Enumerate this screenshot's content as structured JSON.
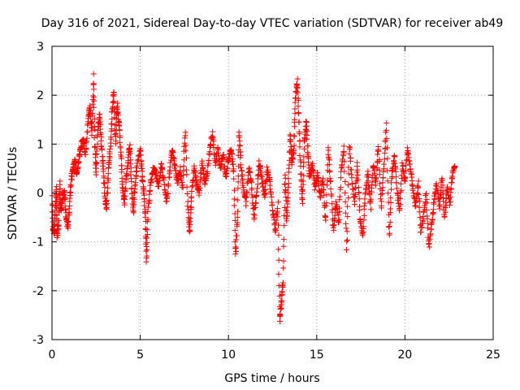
{
  "chart_data": {
    "type": "scatter",
    "title": "Day 316 of 2021, Sidereal Day-to-day VTEC variation (SDTVAR) for receiver ab49",
    "xlabel": "GPS time / hours",
    "ylabel": "SDTVAR / TECUs",
    "xlim": [
      0,
      25
    ],
    "ylim": [
      -3,
      3
    ],
    "xticks": [
      0,
      5,
      10,
      15,
      20,
      25
    ],
    "yticks": [
      -3,
      -2,
      -1,
      0,
      1,
      2,
      3
    ],
    "grid": true,
    "marker": "+",
    "color": "#ff0000",
    "series": [
      {
        "name": "SDTVAR",
        "trace": [
          [
            0.0,
            -0.05
          ],
          [
            0.05,
            -0.7
          ],
          [
            0.12,
            -0.8
          ],
          [
            0.2,
            -0.3
          ],
          [
            0.25,
            0.1
          ],
          [
            0.3,
            -0.9
          ],
          [
            0.38,
            -0.6
          ],
          [
            0.45,
            0.2
          ],
          [
            0.5,
            -0.4
          ],
          [
            0.6,
            -0.1
          ],
          [
            0.7,
            0.05
          ],
          [
            0.8,
            -0.5
          ],
          [
            0.9,
            -0.7
          ],
          [
            1.0,
            -0.2
          ],
          [
            1.1,
            0.3
          ],
          [
            1.2,
            0.5
          ],
          [
            1.3,
            0.7
          ],
          [
            1.4,
            0.4
          ],
          [
            1.5,
            0.6
          ],
          [
            1.6,
            0.9
          ],
          [
            1.75,
            1.1
          ],
          [
            1.9,
            0.8
          ],
          [
            2.05,
            1.5
          ],
          [
            2.15,
            1.8
          ],
          [
            2.25,
            1.2
          ],
          [
            2.35,
            2.4
          ],
          [
            2.42,
            1.0
          ],
          [
            2.5,
            0.4
          ],
          [
            2.6,
            1.3
          ],
          [
            2.7,
            1.6
          ],
          [
            2.8,
            1.0
          ],
          [
            2.9,
            0.5
          ],
          [
            3.0,
            -0.1
          ],
          [
            3.1,
            -0.3
          ],
          [
            3.2,
            0.5
          ],
          [
            3.3,
            0.9
          ],
          [
            3.4,
            1.6
          ],
          [
            3.5,
            2.1
          ],
          [
            3.6,
            1.0
          ],
          [
            3.7,
            1.8
          ],
          [
            3.8,
            1.4
          ],
          [
            3.9,
            0.8
          ],
          [
            4.0,
            0.1
          ],
          [
            4.1,
            -0.2
          ],
          [
            4.2,
            0.3
          ],
          [
            4.3,
            0.6
          ],
          [
            4.4,
            1.0
          ],
          [
            4.5,
            0.2
          ],
          [
            4.6,
            -0.4
          ],
          [
            4.7,
            0.1
          ],
          [
            4.8,
            0.5
          ],
          [
            5.0,
            0.9
          ],
          [
            5.1,
            0.4
          ],
          [
            5.2,
            0.0
          ],
          [
            5.3,
            -0.5
          ],
          [
            5.35,
            -1.4
          ],
          [
            5.45,
            -0.3
          ],
          [
            5.6,
            0.2
          ],
          [
            5.75,
            0.5
          ],
          [
            5.9,
            0.4
          ],
          [
            6.05,
            0.1
          ],
          [
            6.2,
            0.6
          ],
          [
            6.35,
            0.2
          ],
          [
            6.5,
            -0.2
          ],
          [
            6.65,
            0.4
          ],
          [
            6.8,
            0.9
          ],
          [
            6.95,
            0.6
          ],
          [
            7.1,
            0.2
          ],
          [
            7.25,
            0.5
          ],
          [
            7.4,
            0.1
          ],
          [
            7.55,
            1.3
          ],
          [
            7.7,
            -0.3
          ],
          [
            7.8,
            -0.8
          ],
          [
            7.9,
            -0.1
          ],
          [
            8.05,
            0.5
          ],
          [
            8.2,
            0.2
          ],
          [
            8.35,
            0.0
          ],
          [
            8.5,
            0.6
          ],
          [
            8.65,
            0.2
          ],
          [
            8.8,
            0.4
          ],
          [
            8.95,
            0.9
          ],
          [
            9.1,
            1.2
          ],
          [
            9.25,
            0.6
          ],
          [
            9.4,
            0.9
          ],
          [
            9.55,
            0.5
          ],
          [
            9.7,
            0.8
          ],
          [
            9.85,
            0.3
          ],
          [
            10.0,
            0.7
          ],
          [
            10.15,
            0.9
          ],
          [
            10.3,
            0.4
          ],
          [
            10.4,
            -1.3
          ],
          [
            10.5,
            -0.5
          ],
          [
            10.6,
            1.3
          ],
          [
            10.7,
            0.6
          ],
          [
            10.85,
            0.1
          ],
          [
            11.0,
            -0.2
          ],
          [
            11.15,
            0.5
          ],
          [
            11.3,
            0.2
          ],
          [
            11.45,
            -0.5
          ],
          [
            11.6,
            0.0
          ],
          [
            11.75,
            0.6
          ],
          [
            11.9,
            0.3
          ],
          [
            12.05,
            -0.1
          ],
          [
            12.2,
            0.5
          ],
          [
            12.35,
            0.2
          ],
          [
            12.5,
            -0.3
          ],
          [
            12.65,
            -0.8
          ],
          [
            12.8,
            -0.2
          ],
          [
            12.9,
            -2.6
          ],
          [
            13.0,
            -2.2
          ],
          [
            13.1,
            -1.8
          ],
          [
            13.2,
            0.4
          ],
          [
            13.3,
            -0.6
          ],
          [
            13.4,
            0.2
          ],
          [
            13.5,
            1.2
          ],
          [
            13.6,
            0.6
          ],
          [
            13.7,
            0.9
          ],
          [
            13.8,
            1.9
          ],
          [
            13.9,
            2.3
          ],
          [
            14.0,
            1.4
          ],
          [
            14.1,
            0.4
          ],
          [
            14.2,
            -0.2
          ],
          [
            14.3,
            1.0
          ],
          [
            14.4,
            1.5
          ],
          [
            14.5,
            0.8
          ],
          [
            14.6,
            0.3
          ],
          [
            14.75,
            0.6
          ],
          [
            14.9,
            0.1
          ],
          [
            15.05,
            0.4
          ],
          [
            15.2,
            -0.1
          ],
          [
            15.35,
            0.3
          ],
          [
            15.5,
            -0.6
          ],
          [
            15.65,
            0.9
          ],
          [
            15.8,
            0.2
          ],
          [
            15.95,
            -0.8
          ],
          [
            16.1,
            -0.2
          ],
          [
            16.25,
            -0.6
          ],
          [
            16.4,
            0.5
          ],
          [
            16.55,
            0.9
          ],
          [
            16.7,
            -1.2
          ],
          [
            16.85,
            1.0
          ],
          [
            17.0,
            0.2
          ],
          [
            17.15,
            -0.2
          ],
          [
            17.3,
            0.6
          ],
          [
            17.45,
            -0.5
          ],
          [
            17.6,
            -0.9
          ],
          [
            17.75,
            0.0
          ],
          [
            17.9,
            0.4
          ],
          [
            18.05,
            -0.3
          ],
          [
            18.2,
            0.6
          ],
          [
            18.35,
            0.2
          ],
          [
            18.5,
            1.0
          ],
          [
            18.65,
            -0.3
          ],
          [
            18.8,
            0.5
          ],
          [
            18.95,
            1.4
          ],
          [
            19.1,
            -0.9
          ],
          [
            19.25,
            0.3
          ],
          [
            19.4,
            0.8
          ],
          [
            19.55,
            0.1
          ],
          [
            19.7,
            -0.4
          ],
          [
            19.85,
            0.6
          ],
          [
            20.0,
            0.2
          ],
          [
            20.15,
            0.9
          ],
          [
            20.3,
            0.5
          ],
          [
            20.45,
            0.1
          ],
          [
            20.6,
            -0.3
          ],
          [
            20.75,
            0.2
          ],
          [
            20.9,
            -0.8
          ],
          [
            21.05,
            -0.5
          ],
          [
            21.2,
            0.0
          ],
          [
            21.35,
            -1.1
          ],
          [
            21.5,
            -0.7
          ],
          [
            21.65,
            -0.2
          ],
          [
            21.8,
            0.2
          ],
          [
            21.95,
            -0.3
          ],
          [
            22.1,
            0.3
          ],
          [
            22.25,
            -0.5
          ],
          [
            22.4,
            0.1
          ],
          [
            22.55,
            -0.2
          ],
          [
            22.7,
            0.4
          ],
          [
            22.85,
            0.6
          ]
        ]
      }
    ]
  }
}
